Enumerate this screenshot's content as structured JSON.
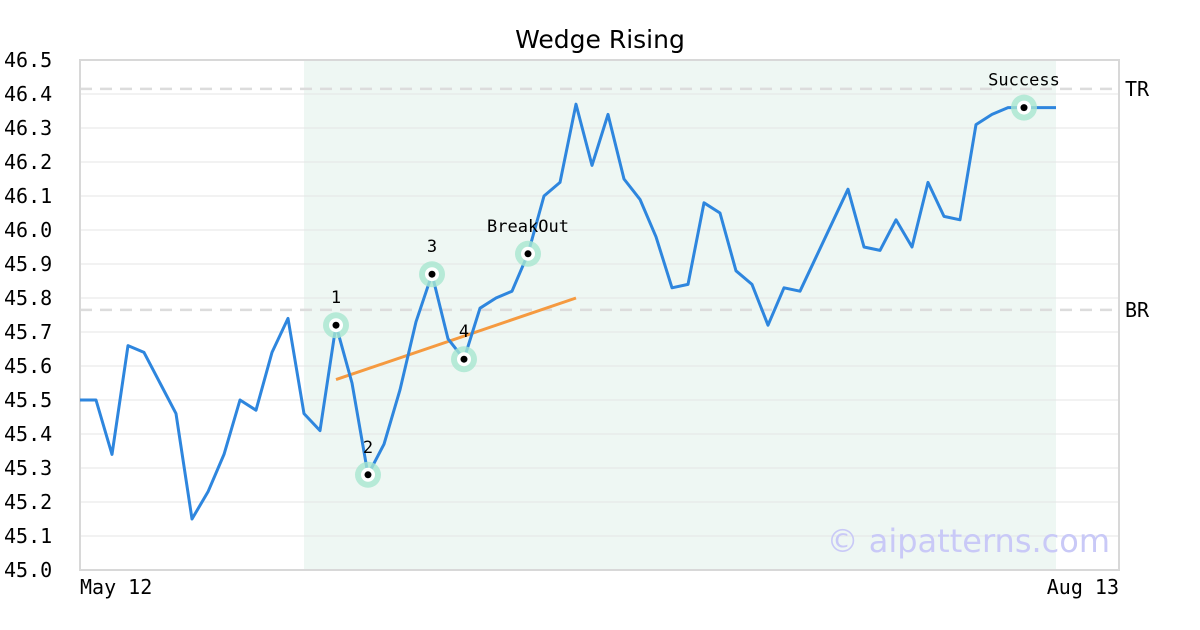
{
  "chart_data": {
    "type": "line",
    "title": "Wedge Rising",
    "x_tick_labels": [
      "May 12",
      "Aug 13"
    ],
    "ylim": [
      45.0,
      46.5
    ],
    "y_ticks": [
      45.0,
      45.1,
      45.2,
      45.3,
      45.4,
      45.5,
      45.6,
      45.7,
      45.8,
      45.9,
      46.0,
      46.1,
      46.2,
      46.3,
      46.4,
      46.5
    ],
    "y_tick_labels": [
      "45.0",
      "45.1",
      "45.2",
      "45.3",
      "45.4",
      "45.5",
      "45.6",
      "45.7",
      "45.8",
      "45.9",
      "46.0",
      "46.1",
      "46.2",
      "46.3",
      "46.4",
      "46.5"
    ],
    "grid": "horizontal",
    "series": [
      {
        "color": "#2e86de",
        "values": [
          45.5,
          45.5,
          45.34,
          45.66,
          45.64,
          45.55,
          45.46,
          45.15,
          45.23,
          45.34,
          45.5,
          45.47,
          45.64,
          45.74,
          45.46,
          45.41,
          45.72,
          45.55,
          45.28,
          45.37,
          45.53,
          45.73,
          45.87,
          45.68,
          45.62,
          45.77,
          45.8,
          45.82,
          45.93,
          46.1,
          46.14,
          46.37,
          46.19,
          46.34,
          46.15,
          46.09,
          45.98,
          45.83,
          45.84,
          46.08,
          46.05,
          45.88,
          45.84,
          45.72,
          45.83,
          45.82,
          45.92,
          46.02,
          46.12,
          45.95,
          45.94,
          46.03,
          45.95,
          46.14,
          46.04,
          46.03,
          46.31,
          46.34,
          46.36,
          46.36,
          46.36,
          46.36
        ]
      }
    ],
    "pattern_region": {
      "start_index": 14,
      "end_index": 61,
      "color": "#eef7f3"
    },
    "trend_line": {
      "start_index": 16,
      "end_index": 31,
      "start_value": 45.56,
      "end_value": 45.8,
      "color": "#f59a40"
    },
    "reference_lines": [
      {
        "label": "TR",
        "value": 46.415
      },
      {
        "label": "BR",
        "value": 45.765
      }
    ],
    "annotations": [
      {
        "label": "1",
        "index": 16,
        "value": 45.72,
        "label_pos": "above"
      },
      {
        "label": "2",
        "index": 18,
        "value": 45.28,
        "label_pos": "above"
      },
      {
        "label": "3",
        "index": 22,
        "value": 45.87,
        "label_pos": "above"
      },
      {
        "label": "4",
        "index": 24,
        "value": 45.62,
        "label_pos": "above"
      },
      {
        "label": "BreakOut",
        "index": 28,
        "value": 45.93,
        "label_pos": "above"
      },
      {
        "label": "Success",
        "index": 59,
        "value": 46.36,
        "label_pos": "above"
      }
    ],
    "marker_color": "#a8e6cf",
    "watermark": "© aipatterns.com"
  }
}
